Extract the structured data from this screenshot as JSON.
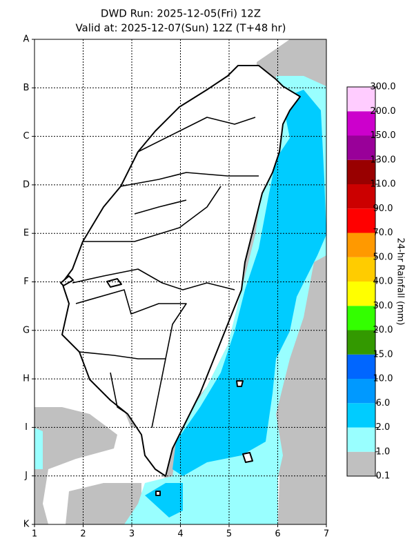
{
  "header": {
    "title": "DWD Run: 2025-12-05(Fri) 12Z",
    "subtitle": "Valid at: 2025-12-07(Sun) 12Z (T+48 hr)"
  },
  "map": {
    "rows": [
      "A",
      "B",
      "C",
      "D",
      "E",
      "F",
      "G",
      "H",
      "I",
      "J",
      "K"
    ],
    "columns": [
      1,
      2,
      3,
      4,
      5,
      6,
      7
    ]
  },
  "colorbar": {
    "title": "24-hr Rainfall (mm)",
    "ticks": [
      {
        "value": 0.1,
        "label": "0.1"
      },
      {
        "value": 1,
        "label": "1.0"
      },
      {
        "value": 2,
        "label": "2.0"
      },
      {
        "value": 6,
        "label": "6.0"
      },
      {
        "value": 10,
        "label": "10.0"
      },
      {
        "value": 15,
        "label": "15.0"
      },
      {
        "value": 20,
        "label": "20.0"
      },
      {
        "value": 30,
        "label": "30.0"
      },
      {
        "value": 40,
        "label": "40.0"
      },
      {
        "value": 50,
        "label": "50.0"
      },
      {
        "value": 70,
        "label": "70.0"
      },
      {
        "value": 90,
        "label": "90.0"
      },
      {
        "value": 110,
        "label": "110.0"
      },
      {
        "value": 130,
        "label": "130.0"
      },
      {
        "value": 150,
        "label": "150.0"
      },
      {
        "value": 200,
        "label": "200.0"
      },
      {
        "value": 300,
        "label": "300.0"
      }
    ],
    "colors": [
      "#c0c0c0",
      "#99ffff",
      "#00ccff",
      "#0099ff",
      "#0066ff",
      "#339900",
      "#33ff00",
      "#ffff00",
      "#ffcc00",
      "#ff9900",
      "#ff0000",
      "#cc0000",
      "#990000",
      "#990099",
      "#cc00cc",
      "#ffccff"
    ]
  }
}
